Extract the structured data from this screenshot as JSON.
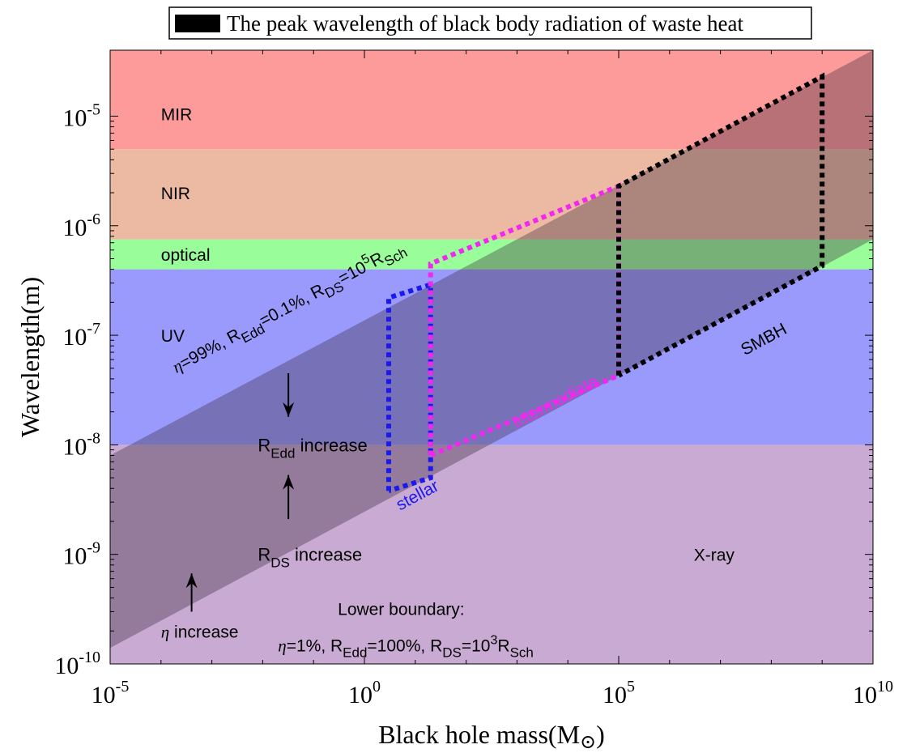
{
  "chart_data": {
    "type": "area",
    "legend": {
      "label": "The peak wavelength of black body radiation of waste heat",
      "color": "#000000",
      "position": "top"
    },
    "xlabel": "Black hole mass(M",
    "xlabel_symbol": "⊙",
    "xlabel_close": ")",
    "ylabel": "Wavelength(m)",
    "x_scale": "log",
    "y_scale": "log",
    "xlim": [
      1e-05,
      10000000000.0
    ],
    "ylim": [
      1e-10,
      4e-05
    ],
    "x_ticks": [
      {
        "value": 1e-05,
        "base": "10",
        "exp": "-5"
      },
      {
        "value": 1,
        "base": "10",
        "exp": "0"
      },
      {
        "value": 100000.0,
        "base": "10",
        "exp": "5"
      },
      {
        "value": 10000000000.0,
        "base": "10",
        "exp": "10"
      }
    ],
    "y_ticks": [
      {
        "value": 1e-10,
        "base": "10",
        "exp": "-10"
      },
      {
        "value": 1e-09,
        "base": "10",
        "exp": "-9"
      },
      {
        "value": 1e-08,
        "base": "10",
        "exp": "-8"
      },
      {
        "value": 1e-07,
        "base": "10",
        "exp": "-7"
      },
      {
        "value": 1e-06,
        "base": "10",
        "exp": "-6"
      },
      {
        "value": 1e-05,
        "base": "10",
        "exp": "-5"
      }
    ],
    "bands": [
      {
        "name": "X-ray",
        "y_min": 1e-10,
        "y_max": 1e-08,
        "color": "#c9aad2",
        "label_x": 3000000.0,
        "label_y": 1e-09
      },
      {
        "name": "UV",
        "y_min": 1e-08,
        "y_max": 4e-07,
        "color": "#9a9afd",
        "label_x": 0.0001,
        "label_y": 1e-07
      },
      {
        "name": "optical",
        "y_min": 4e-07,
        "y_max": 7.5e-07,
        "color": "#99fd99",
        "label_x": 0.0001,
        "label_y": 5.5e-07
      },
      {
        "name": "NIR",
        "y_min": 7.5e-07,
        "y_max": 5e-06,
        "color": "#ecb9a2",
        "label_x": 0.0001,
        "label_y": 2e-06
      },
      {
        "name": "MIR",
        "y_min": 5e-06,
        "y_max": 4e-05,
        "color": "#fd9a9a",
        "label_x": 0.0001,
        "label_y": 1.05e-05
      }
    ],
    "upper_boundary": {
      "x": [
        1e-05,
        10000000000.0
      ],
      "y": [
        8e-09,
        4e-05
      ]
    },
    "lower_boundary": {
      "x": [
        1e-05,
        10000000000.0
      ],
      "y": [
        1.4e-10,
        7.5e-07
      ]
    },
    "shade_color": "#3a2a3a",
    "shade_opacity": 0.36,
    "series": [
      {
        "name": "stellar",
        "color": "#1a1af0",
        "label_x": 5,
        "label_y": 2.5e-09,
        "x": [
          3,
          3,
          20,
          20,
          3
        ],
        "y": [
          3.8e-09,
          2.2e-07,
          2.9e-07,
          5e-09,
          3.8e-09
        ]
      },
      {
        "name": "intermediate",
        "color": "#f028f0",
        "label_x": 1000,
        "label_y": 1.4e-08,
        "x": [
          20,
          20,
          100000.0,
          100000.0,
          20
        ],
        "y": [
          8e-09,
          4.5e-07,
          2.3e-06,
          4.3e-08,
          8e-09
        ]
      },
      {
        "name": "SMBH",
        "color": "#000000",
        "label_x": 30000000.0,
        "label_y": 6.5e-08,
        "x": [
          100000.0,
          100000.0,
          1000000000.0,
          1000000000.0,
          100000.0
        ],
        "y": [
          4.3e-08,
          2.3e-06,
          2.3e-05,
          4.3e-07,
          4.3e-08
        ]
      }
    ],
    "annotations": {
      "upper": {
        "parts": [
          "η",
          "=99%, R",
          "Edd",
          "=0.1%, R",
          "DS",
          "=10",
          "5",
          "R",
          "Sch"
        ],
        "x": 0.0002,
        "y": 4.5e-08
      },
      "redd_increase": {
        "text": "R",
        "sub": "Edd",
        "rest": " increase",
        "x": 0.008,
        "y": 1e-08,
        "arrow_from": 4.5e-08,
        "arrow_to": 1.8e-08
      },
      "rds_increase": {
        "text": "R",
        "sub": "DS",
        "rest": " increase",
        "x": 0.008,
        "y": 1e-09,
        "arrow_from": 2.1e-09,
        "arrow_to": 5.3e-09
      },
      "eta_increase": {
        "symbol": "η",
        "rest": " increase",
        "x": 0.0001,
        "y": 2e-10,
        "arrow_from": 3e-10,
        "arrow_to": 6.7e-10
      },
      "lower_title": {
        "text": "Lower boundary:",
        "x": 0.3,
        "y": 2.8e-10
      },
      "lower": {
        "parts": [
          "η",
          "=1%, R",
          "Edd",
          "=100%, R",
          "DS",
          "=10",
          "3",
          "R",
          "Sch"
        ],
        "x": 0.02,
        "y": 1.3e-10
      }
    }
  }
}
